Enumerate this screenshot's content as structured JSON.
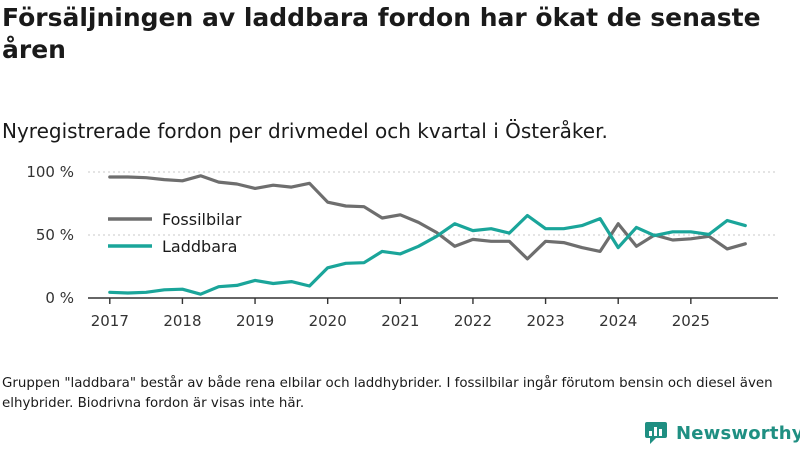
{
  "title": "Försäljningen av laddbara fordon har ökat de senaste åren",
  "subtitle": "Nyregistrerade fordon per drivmedel och kvartal i Österåker.",
  "footnote": "Gruppen \"laddbara\" består av både rena elbilar och laddhybrider. I fossilbilar ingår förutom bensin och diesel även elhybrider. Biodrivna fordon är visas inte här.",
  "brand": {
    "name": "Newsworthy",
    "color": "#1f8f82",
    "icon": "newsworthy-logo-icon"
  },
  "chart_data": {
    "type": "line",
    "title": "",
    "xlabel": "",
    "ylabel": "",
    "x_ticks": [
      "2017",
      "2018",
      "2019",
      "2020",
      "2021",
      "2022",
      "2023",
      "2024",
      "2025"
    ],
    "y_ticks": [
      {
        "value": 0,
        "label": "0 %"
      },
      {
        "value": 50,
        "label": "50 %"
      },
      {
        "value": 100,
        "label": "100 %"
      }
    ],
    "xlim": [
      2016.7,
      2026.2
    ],
    "ylim": [
      0,
      100
    ],
    "legend_position": "left",
    "series": [
      {
        "name": "Fossilbilar",
        "color": "#6e6e6e",
        "x": [
          2017.0,
          2017.25,
          2017.5,
          2017.75,
          2018.0,
          2018.25,
          2018.5,
          2018.75,
          2019.0,
          2019.25,
          2019.5,
          2019.75,
          2020.0,
          2020.25,
          2020.5,
          2020.75,
          2021.0,
          2021.25,
          2021.5,
          2021.75,
          2022.0,
          2022.25,
          2022.5,
          2022.75,
          2023.0,
          2023.25,
          2023.5,
          2023.75,
          2024.0,
          2024.25,
          2024.5,
          2024.75,
          2025.0,
          2025.25,
          2025.5,
          2025.75
        ],
        "values": [
          96,
          96,
          95.5,
          94,
          93,
          97,
          92,
          90.5,
          87,
          89.5,
          88,
          91,
          76,
          73,
          72.5,
          63.5,
          66,
          60,
          52,
          41,
          46.5,
          45,
          45,
          31,
          45,
          44,
          40,
          37,
          59,
          41,
          50,
          46,
          47,
          49,
          39,
          43
        ]
      },
      {
        "name": "Laddbara",
        "color": "#1aa59a",
        "x": [
          2017.0,
          2017.25,
          2017.5,
          2017.75,
          2018.0,
          2018.25,
          2018.5,
          2018.75,
          2019.0,
          2019.25,
          2019.5,
          2019.75,
          2020.0,
          2020.25,
          2020.5,
          2020.75,
          2021.0,
          2021.25,
          2021.5,
          2021.75,
          2022.0,
          2022.25,
          2022.5,
          2022.75,
          2023.0,
          2023.25,
          2023.5,
          2023.75,
          2024.0,
          2024.25,
          2024.5,
          2024.75,
          2025.0,
          2025.25,
          2025.5,
          2025.75
        ],
        "values": [
          4.5,
          4,
          4.5,
          6.5,
          7,
          3,
          9,
          10,
          14,
          11.5,
          13,
          9.5,
          24,
          27.5,
          28,
          37,
          35,
          41,
          49,
          59,
          53.5,
          55,
          51.5,
          65.5,
          55,
          55,
          57.5,
          63,
          40,
          56,
          49.5,
          52.5,
          52.5,
          50.5,
          61.5,
          57.5
        ]
      }
    ]
  }
}
